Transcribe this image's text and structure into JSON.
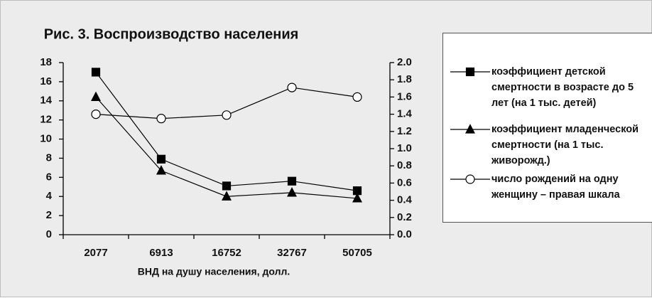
{
  "chart_data": {
    "type": "line",
    "title": "Рис. 3. Воспроизводство населения",
    "x_label": "ВНД на душу населения, долл.",
    "categories": [
      "2077",
      "6913",
      "16752",
      "32767",
      "50705"
    ],
    "ylim": [
      0,
      18
    ],
    "yticks": [
      0,
      2,
      4,
      6,
      8,
      10,
      12,
      14,
      16,
      18
    ],
    "y2lim": [
      0,
      2
    ],
    "y2ticks": [
      {
        "value": 0,
        "label": "0.0"
      },
      0.2,
      0.4,
      0.6,
      0.8,
      {
        "value": 1,
        "label": "1.0"
      },
      1.2,
      1.4,
      1.6,
      1.8,
      {
        "value": 2,
        "label": "2.0"
      }
    ],
    "legend": "right",
    "series": [
      {
        "name": "коэффициент детской смертности в возрасте до 5 лет (на 1 тыс. детей)",
        "color": "#000000",
        "marker": "square",
        "values": [
          17,
          7.9,
          5.1,
          5.6,
          4.6
        ]
      },
      {
        "name": "коэффициент младенческой смертности (на 1 тыс. живорожд.)",
        "color": "#000000",
        "marker": "triangle",
        "values": [
          14.4,
          6.7,
          4.0,
          4.4,
          3.8
        ]
      },
      {
        "name": "число рождений на одну женщину – правая шкала",
        "color": "#ffffff",
        "marker": "circle",
        "axis": "y2",
        "values": [
          1.4,
          1.35,
          1.39,
          1.71,
          1.6
        ]
      }
    ]
  }
}
